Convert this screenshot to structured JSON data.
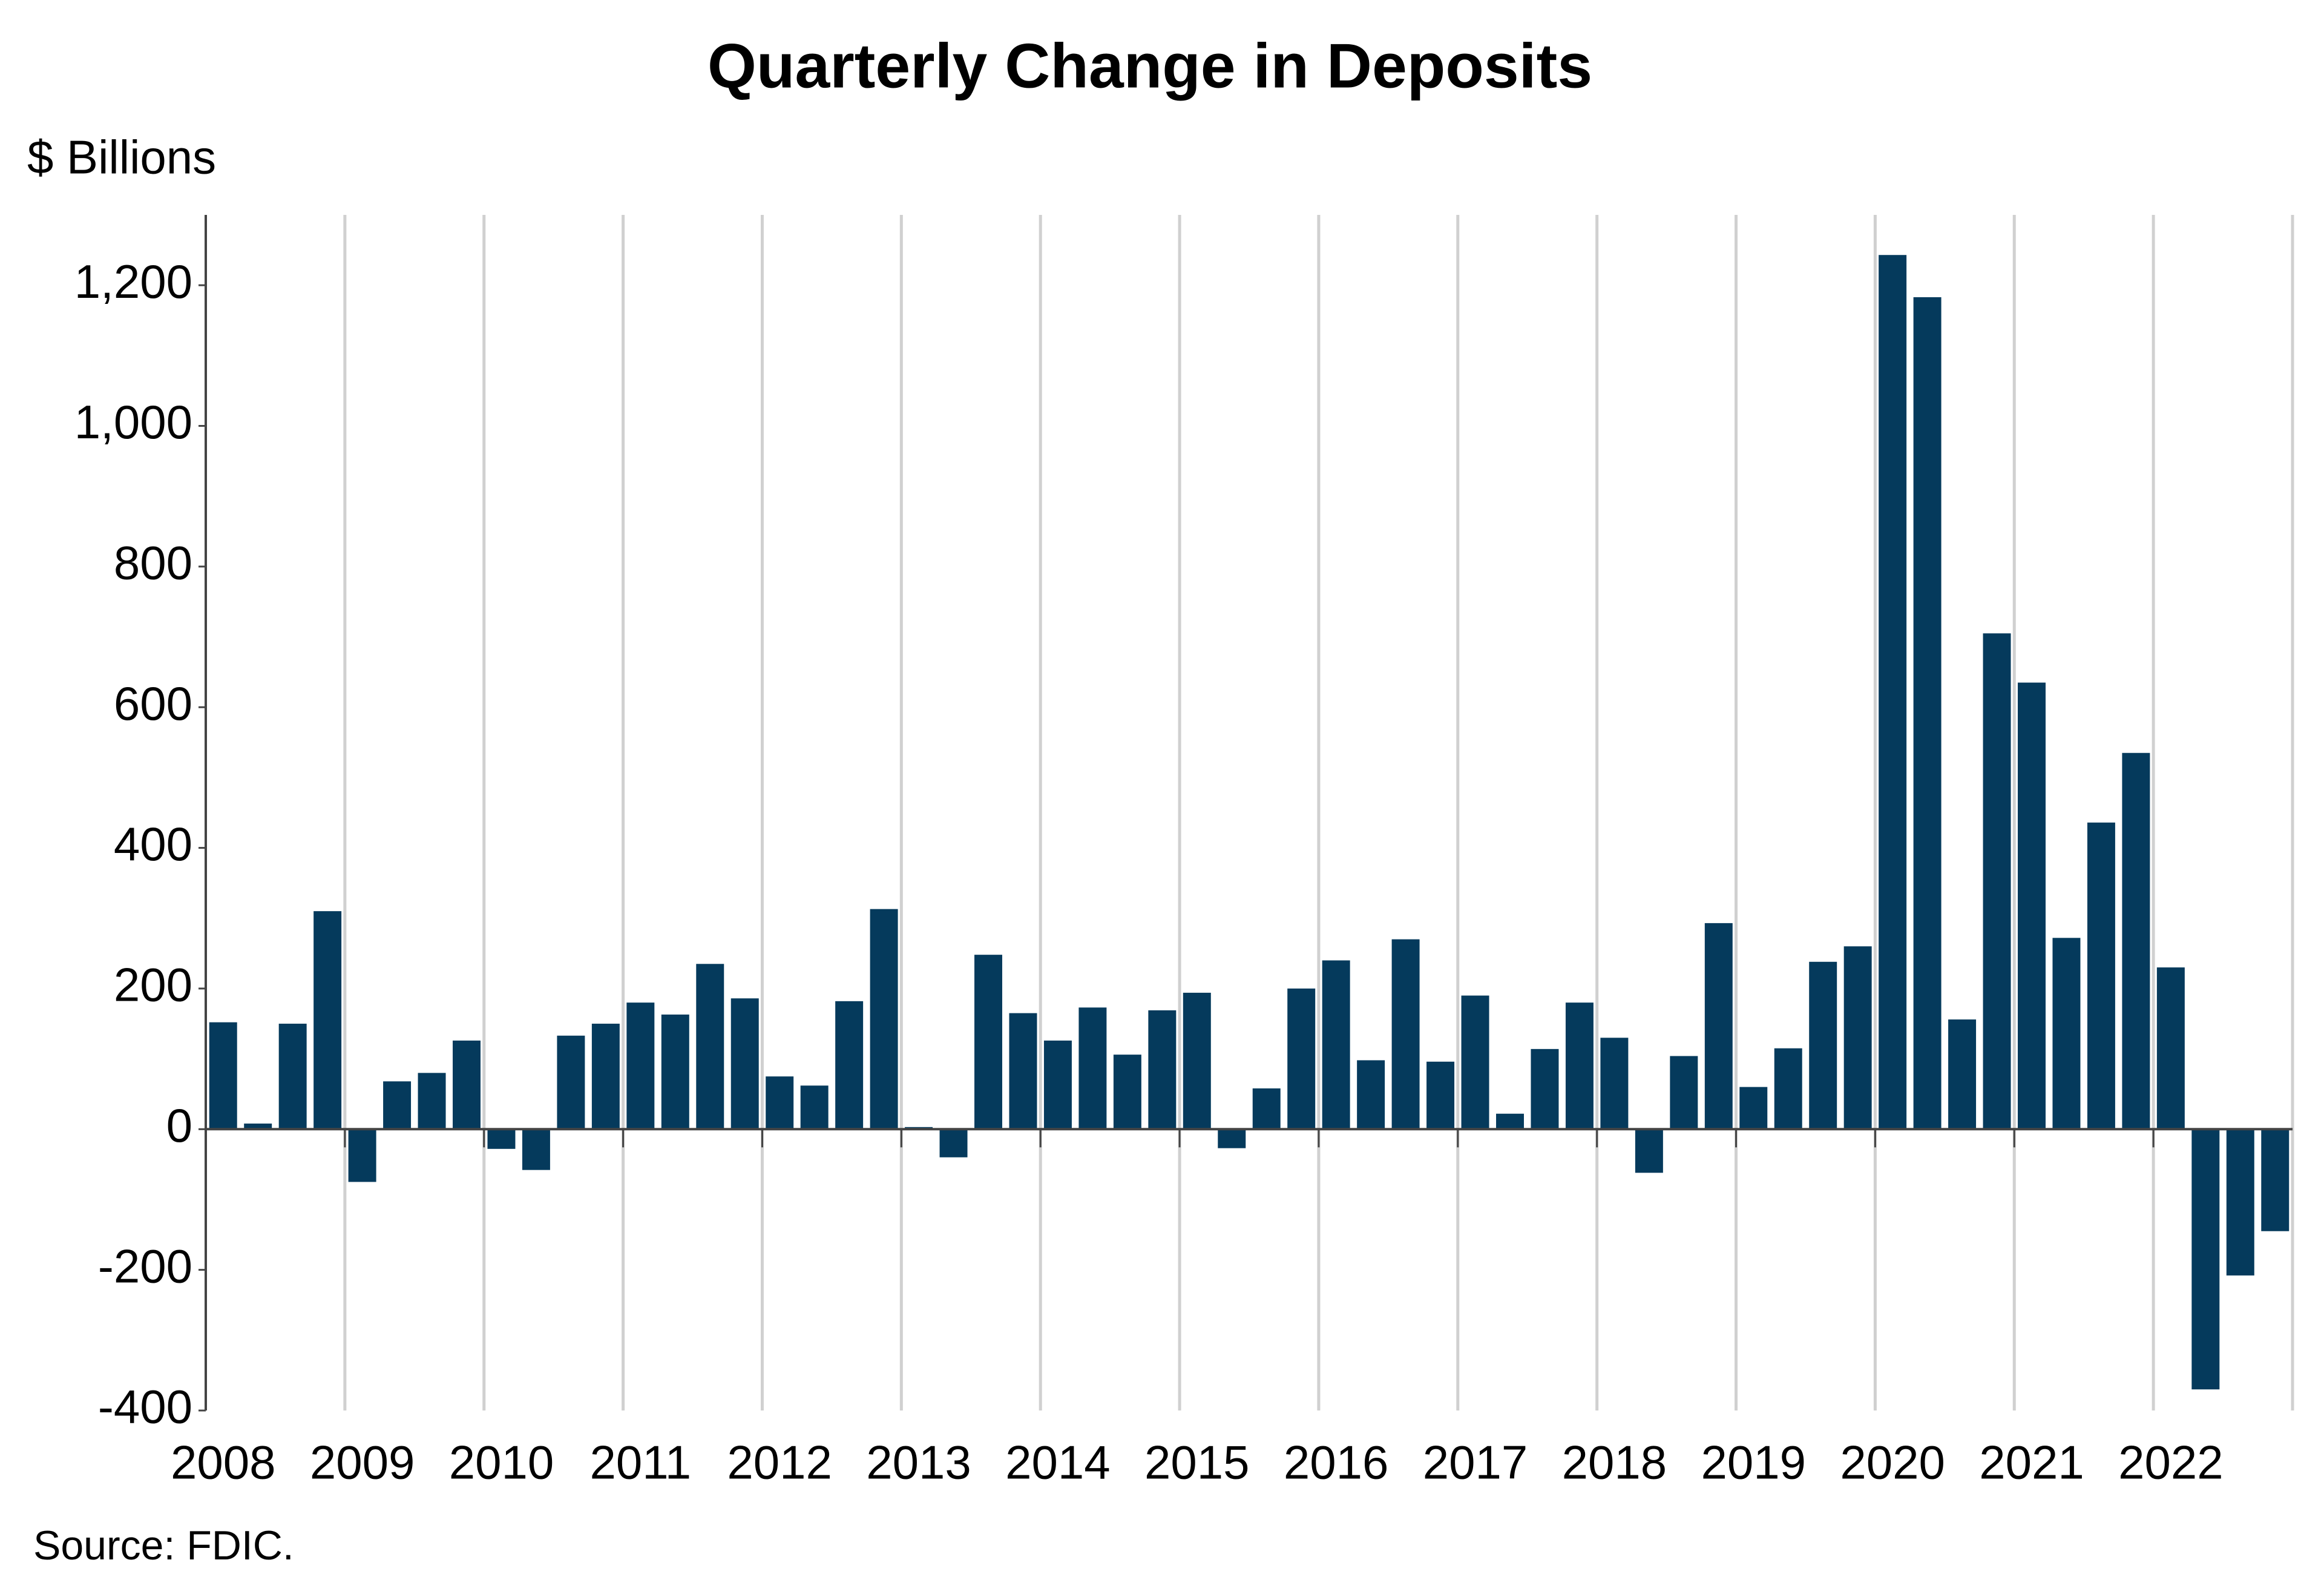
{
  "chart_data": {
    "type": "bar",
    "title": "Quarterly Change in Deposits",
    "y_label": "$ Billions",
    "source": "Source: FDIC.",
    "categories": [
      "2008",
      null,
      null,
      null,
      "2009",
      null,
      null,
      null,
      "2010",
      null,
      null,
      null,
      "2011",
      null,
      null,
      null,
      "2012",
      null,
      null,
      null,
      "2013",
      null,
      null,
      null,
      "2014",
      null,
      null,
      null,
      "2015",
      null,
      null,
      null,
      "2016",
      null,
      null,
      null,
      "2017",
      null,
      null,
      null,
      "2018",
      null,
      null,
      null,
      "2019",
      null,
      null,
      null,
      "2020",
      null,
      null,
      null,
      "2021",
      null,
      null,
      null,
      "2022",
      null,
      null,
      null
    ],
    "values": [
      152,
      8,
      150,
      310,
      -75,
      68,
      80,
      126,
      -28,
      -58,
      133,
      150,
      180,
      163,
      235,
      186,
      75,
      62,
      182,
      313,
      3,
      -40,
      248,
      165,
      126,
      173,
      106,
      169,
      194,
      -27,
      58,
      200,
      240,
      98,
      270,
      96,
      190,
      22,
      114,
      180,
      130,
      -62,
      104,
      293,
      60,
      115,
      238,
      260,
      1243,
      1183,
      156,
      705,
      635,
      272,
      436,
      535,
      230,
      -370,
      -208,
      -145
    ],
    "color": "#053a5c",
    "ylim": [
      -400,
      1300
    ],
    "yticks": [
      -400,
      -200,
      0,
      200,
      400,
      600,
      800,
      {
        "value": 1000,
        "label": "1,000"
      },
      {
        "value": 1200,
        "label": "1,200"
      }
    ],
    "grid": true
  }
}
